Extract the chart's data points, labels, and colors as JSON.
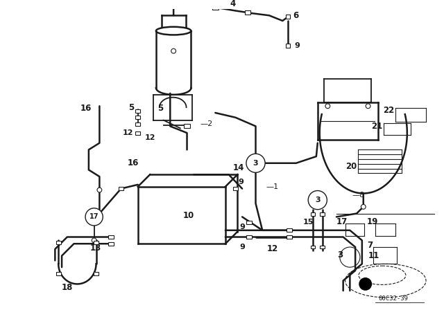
{
  "bg_color": "#ffffff",
  "line_color": "#1a1a1a",
  "diagram_code": "00C32-39",
  "figsize": [
    6.4,
    4.48
  ],
  "dpi": 100
}
